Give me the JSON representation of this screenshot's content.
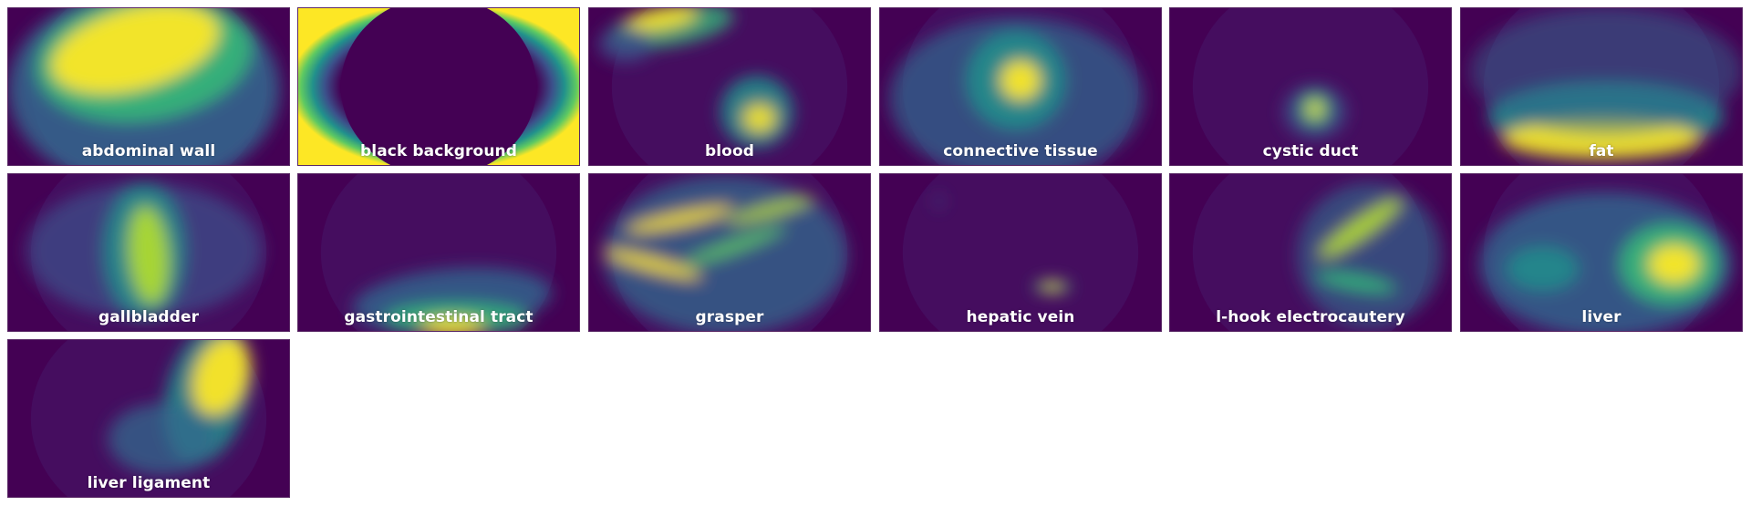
{
  "chart_data": {
    "type": "heatmap",
    "colormap": "viridis",
    "background_color": "#440154",
    "panels": [
      {
        "name": "abdominal wall"
      },
      {
        "name": "black background"
      },
      {
        "name": "blood"
      },
      {
        "name": "connective tissue"
      },
      {
        "name": "cystic duct"
      },
      {
        "name": "fat"
      },
      {
        "name": "gallbladder"
      },
      {
        "name": "gastrointestinal tract"
      },
      {
        "name": "grasper"
      },
      {
        "name": "hepatic vein"
      },
      {
        "name": "l-hook electrocautery"
      },
      {
        "name": "liver"
      },
      {
        "name": "liver ligament"
      }
    ]
  }
}
